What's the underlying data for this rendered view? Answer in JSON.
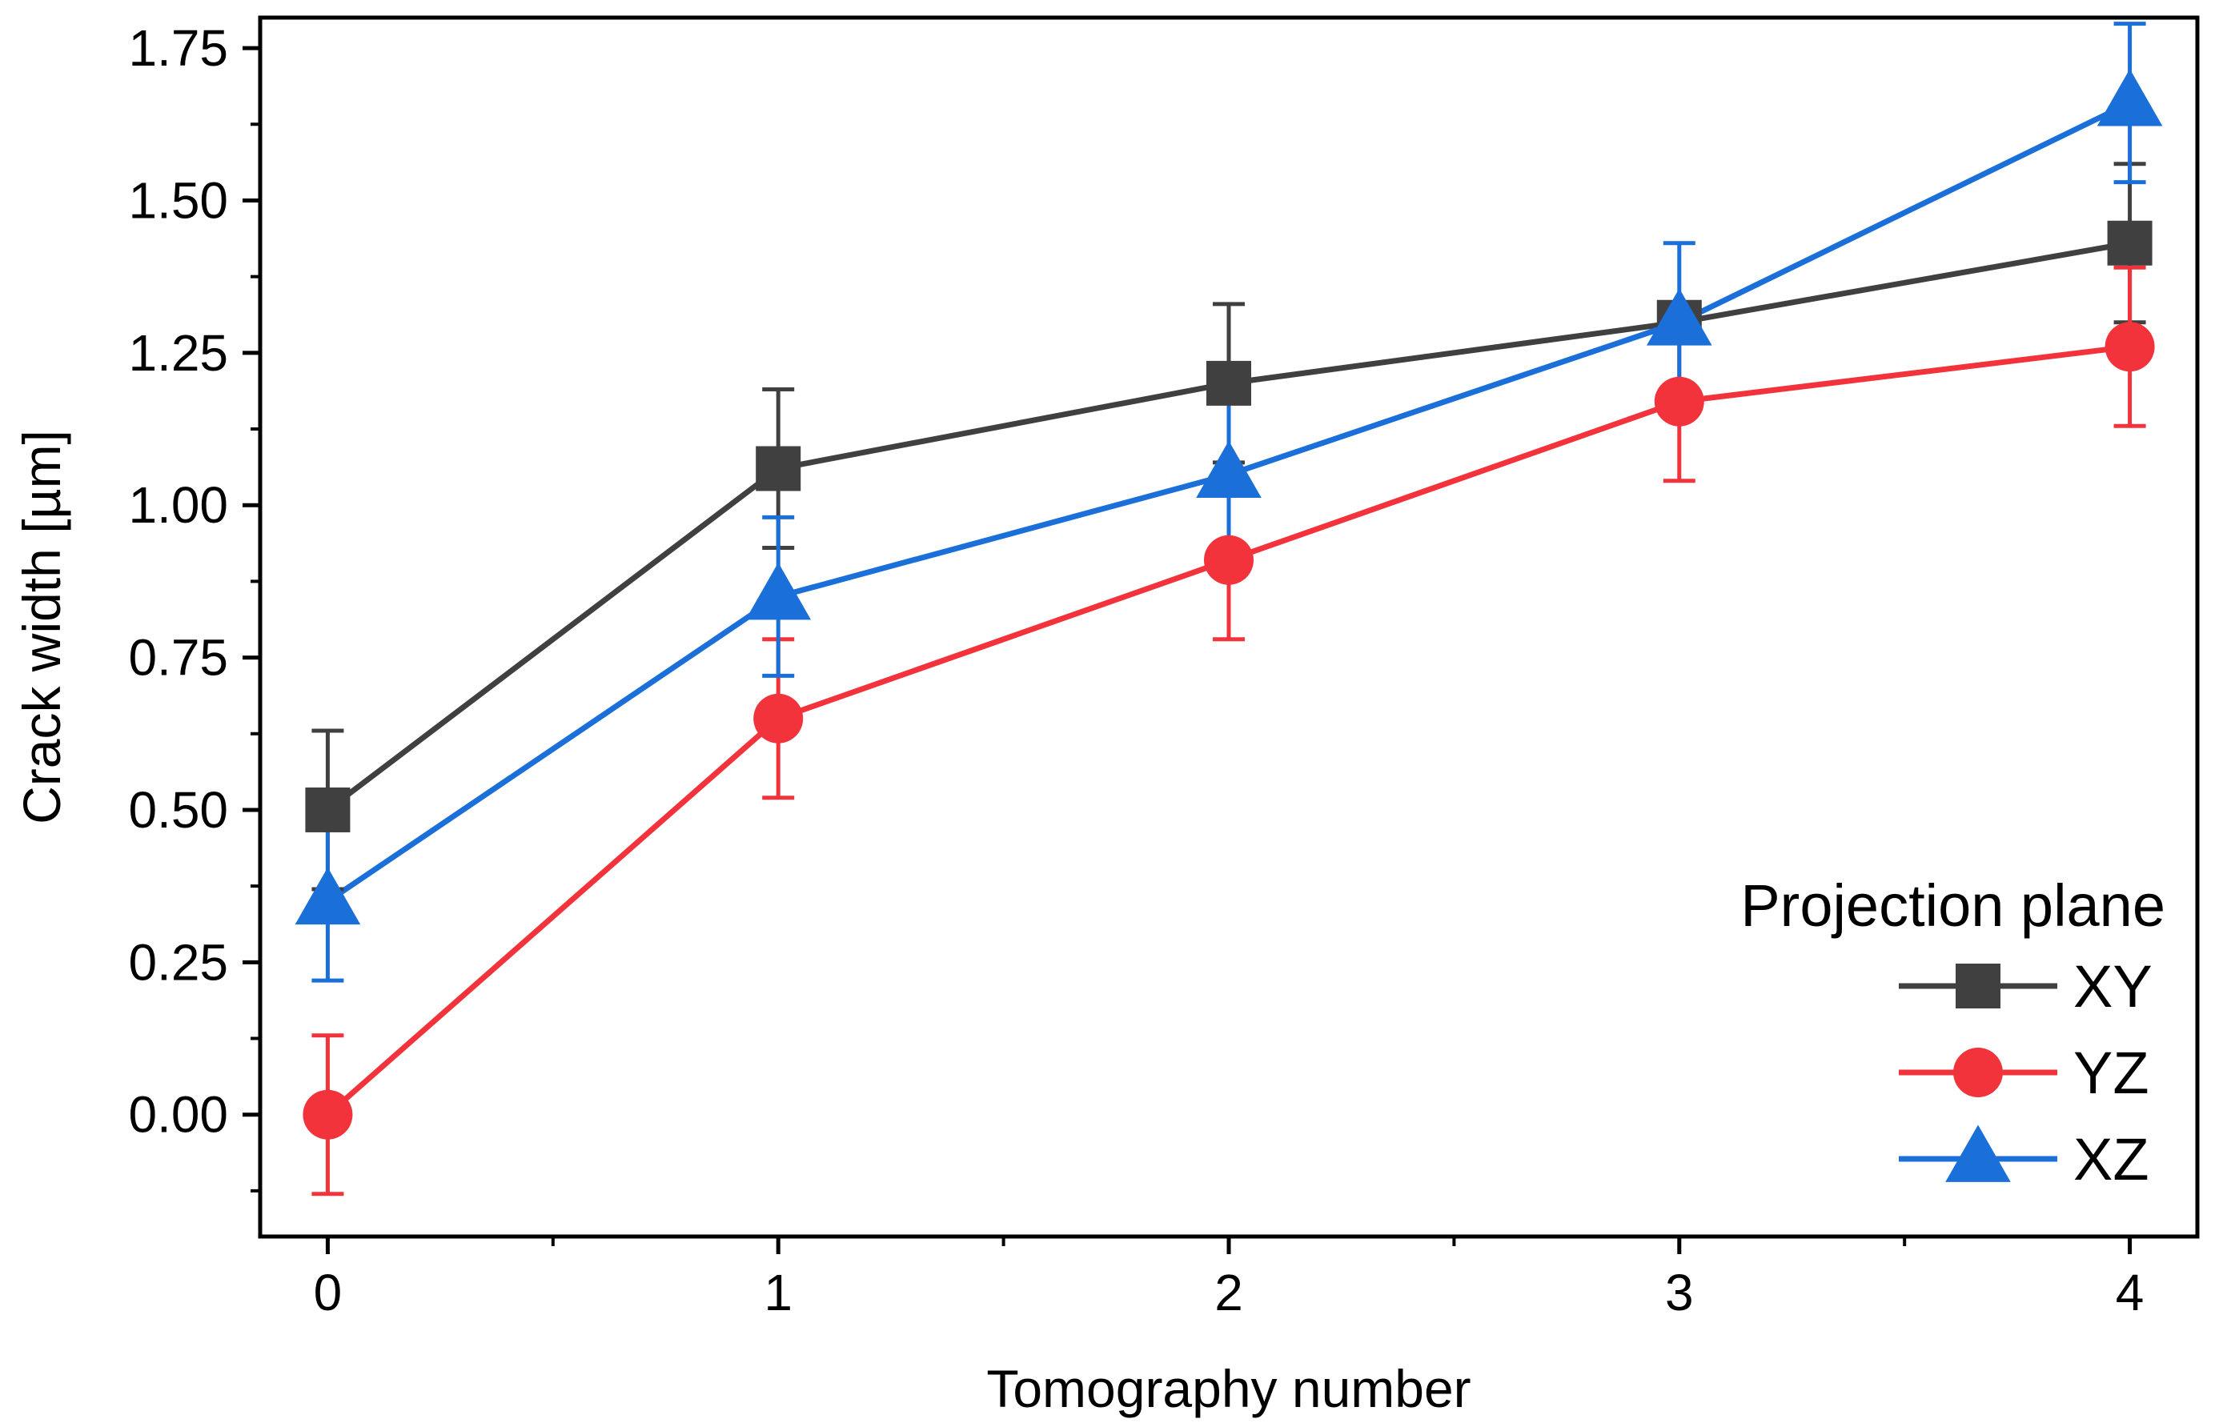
{
  "chart_data": {
    "type": "line",
    "xlabel": "Tomography number",
    "ylabel": "Crack width [µm]",
    "x": [
      0,
      1,
      2,
      3,
      4
    ],
    "x_ticks": [
      "0",
      "1",
      "2",
      "3",
      "4"
    ],
    "xlim": [
      -0.15,
      4.15
    ],
    "ylim": [
      -0.2,
      1.8
    ],
    "y_ticks": [
      "0.00",
      "0.25",
      "0.50",
      "0.75",
      "1.00",
      "1.25",
      "1.50",
      "1.75"
    ],
    "grid": false,
    "error_bars": true,
    "legend": {
      "title": "Projection plane",
      "position": "bottom-right"
    },
    "series": [
      {
        "name": "XY",
        "color": "#404040",
        "marker": "square",
        "values": [
          0.5,
          1.06,
          1.2,
          1.3,
          1.43
        ],
        "errors": [
          0.13,
          0.13,
          0.13,
          0.0,
          0.13
        ]
      },
      {
        "name": "YZ",
        "color": "#f2333c",
        "marker": "circle",
        "values": [
          0.0,
          0.65,
          0.91,
          1.17,
          1.26
        ],
        "errors": [
          0.13,
          0.13,
          0.13,
          0.13,
          0.13
        ]
      },
      {
        "name": "XZ",
        "color": "#1a6fd9",
        "marker": "triangle",
        "values": [
          0.35,
          0.85,
          1.05,
          1.3,
          1.66
        ],
        "errors": [
          0.13,
          0.13,
          0.13,
          0.13,
          0.13
        ]
      }
    ]
  }
}
